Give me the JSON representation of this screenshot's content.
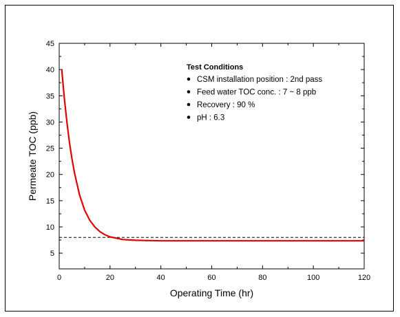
{
  "chart_data": {
    "type": "line",
    "xlabel": "Operating Time (hr)",
    "ylabel": "Permeate TOC (ppb)",
    "xlim": [
      0,
      120
    ],
    "ylim": [
      2,
      45
    ],
    "xticks": [
      0,
      20,
      40,
      60,
      80,
      100,
      120
    ],
    "yticks": [
      5,
      10,
      15,
      20,
      25,
      30,
      35,
      40,
      45
    ],
    "grid": false,
    "series": [
      {
        "color": "#e00000",
        "x": [
          1,
          2,
          3,
          4,
          5,
          6,
          8,
          10,
          12,
          14,
          16,
          18,
          20,
          22,
          25,
          28,
          30,
          35,
          40,
          50,
          60,
          80,
          100,
          120
        ],
        "y": [
          40.0,
          34.6,
          30.1,
          26.2,
          23.0,
          20.3,
          16.1,
          13.2,
          11.3,
          10.0,
          9.1,
          8.5,
          8.1,
          7.9,
          7.6,
          7.5,
          7.45,
          7.4,
          7.35,
          7.35,
          7.35,
          7.35,
          7.35,
          7.35
        ]
      }
    ],
    "reference_lines": [
      {
        "y": 8,
        "style": "dashed",
        "color": "#000000"
      }
    ],
    "annotation": {
      "title": "Test Conditions",
      "items": [
        "CSM installation position : 2nd pass",
        "Feed water TOC conc. : 7 ~ 8 ppb",
        "Recovery : 90 %",
        "pH : 6.3"
      ]
    }
  }
}
